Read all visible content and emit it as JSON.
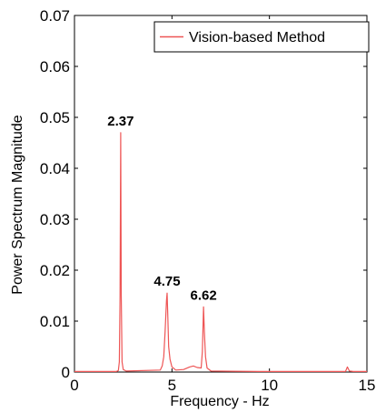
{
  "chart_data": {
    "type": "line",
    "xlabel": "Frequency - Hz",
    "ylabel": "Power Spectrum Magnitude",
    "xlim": [
      0,
      15
    ],
    "ylim": [
      0,
      0.07
    ],
    "xticks": [
      "0",
      "5",
      "10",
      "15"
    ],
    "yticks": [
      "0",
      "0.01",
      "0.02",
      "0.03",
      "0.04",
      "0.05",
      "0.06",
      "0.07"
    ],
    "grid": false,
    "legend_position": "top-right",
    "series": [
      {
        "name": "Vision-based Method",
        "color": "#ee5555",
        "x": [
          0,
          2.15,
          2.25,
          2.3,
          2.34,
          2.37,
          2.4,
          2.44,
          2.5,
          2.65,
          4.4,
          4.5,
          4.58,
          4.65,
          4.72,
          4.75,
          4.78,
          4.83,
          4.9,
          5.0,
          5.2,
          5.6,
          5.9,
          6.1,
          6.3,
          6.5,
          6.56,
          6.62,
          6.66,
          6.72,
          6.8,
          7.0,
          9.5,
          13.9,
          14.0,
          14.1,
          14.3,
          15.0
        ],
        "y": [
          0.0001,
          0.0001,
          0.0003,
          0.002,
          0.015,
          0.047,
          0.015,
          0.002,
          0.0005,
          0.0002,
          0.0004,
          0.0012,
          0.003,
          0.008,
          0.014,
          0.0155,
          0.012,
          0.005,
          0.0025,
          0.001,
          0.0004,
          0.0005,
          0.001,
          0.0012,
          0.0009,
          0.0008,
          0.004,
          0.0128,
          0.008,
          0.003,
          0.0008,
          0.0002,
          0.0001,
          0.0001,
          0.001,
          0.0002,
          0.0001,
          0.0001
        ]
      }
    ],
    "annotations": [
      {
        "text": "2.37",
        "x": 2.37,
        "y": 0.047
      },
      {
        "text": "4.75",
        "x": 4.75,
        "y": 0.0155
      },
      {
        "text": "6.62",
        "x": 6.62,
        "y": 0.0128
      }
    ]
  }
}
